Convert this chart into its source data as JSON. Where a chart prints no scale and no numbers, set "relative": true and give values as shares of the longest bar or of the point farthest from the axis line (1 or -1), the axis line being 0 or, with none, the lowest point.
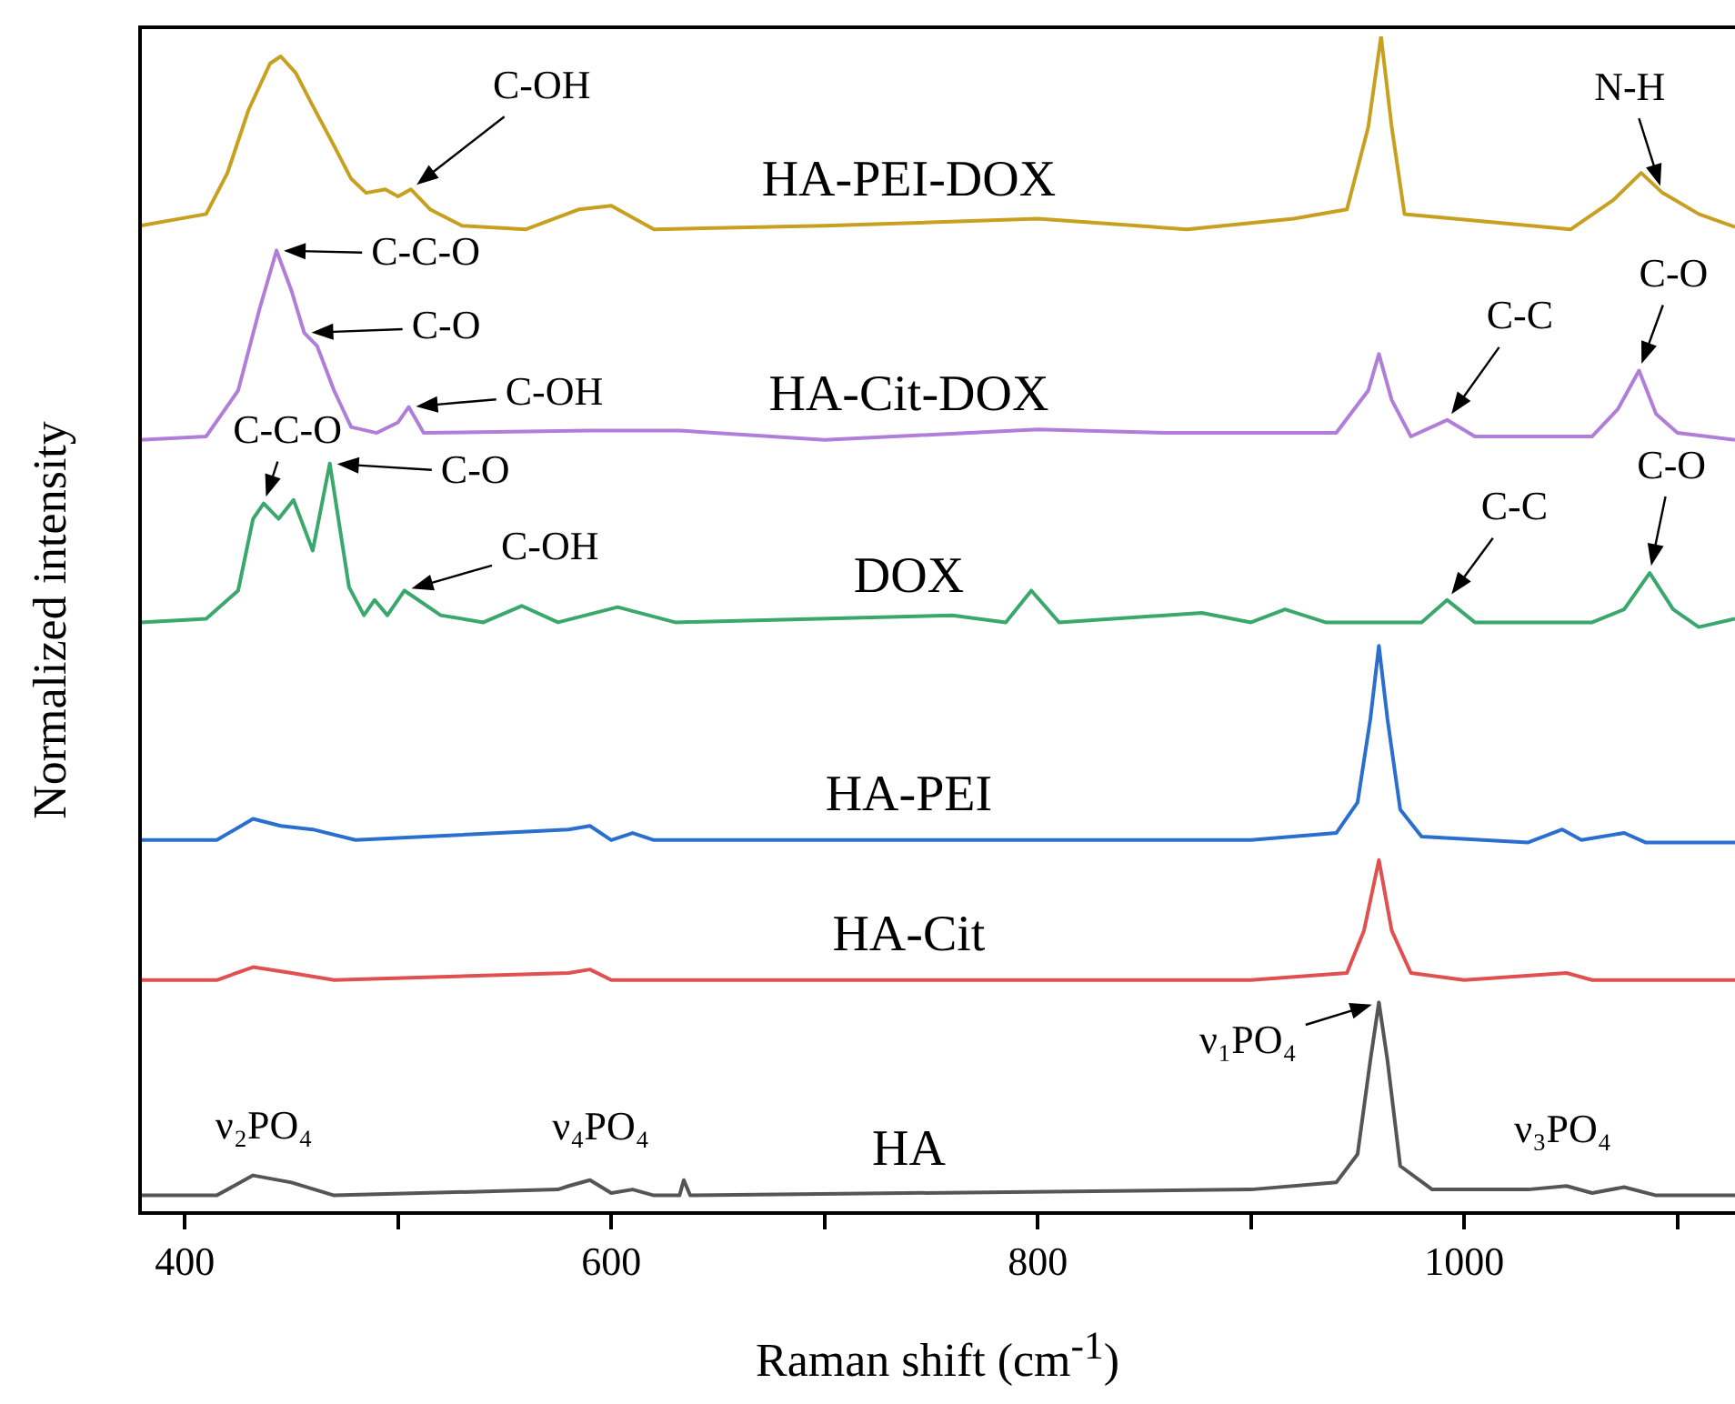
{
  "chart_data": {
    "type": "line",
    "relative": true,
    "xlabel": "Raman shift (cm$^{-1}$)",
    "ylabel": "Normalized intensity",
    "xlim": [
      379,
      1127
    ],
    "xticks": [
      400,
      {
        "value": 500,
        "label": null
      },
      600,
      {
        "value": 700,
        "label": null
      },
      800,
      {
        "value": 900,
        "label": null
      },
      1000,
      {
        "value": 1100,
        "label": null
      }
    ],
    "grid": false,
    "legend": false,
    "marker": "none",
    "line_style": "solid",
    "series": [
      {
        "name": "HA",
        "color": "#555555",
        "x": [
          379,
          415,
          432,
          450,
          470,
          575,
          580,
          590,
          600,
          610,
          620,
          632,
          634,
          637,
          900,
          940,
          950,
          956,
          960,
          964,
          970,
          985,
          1030,
          1048,
          1060,
          1075,
          1090,
          1127
        ],
        "values": [
          0.015,
          0.015,
          0.032,
          0.026,
          0.015,
          0.02,
          0.023,
          0.028,
          0.017,
          0.02,
          0.015,
          0.015,
          0.028,
          0.015,
          0.02,
          0.026,
          0.05,
          0.13,
          0.179,
          0.13,
          0.04,
          0.02,
          0.02,
          0.023,
          0.017,
          0.022,
          0.015,
          0.015
        ]
      },
      {
        "name": "HA-Cit",
        "color": "#e05050",
        "x": [
          379,
          415,
          432,
          450,
          470,
          580,
          590,
          600,
          900,
          945,
          953,
          960,
          966,
          975,
          1000,
          1048,
          1060,
          1127
        ],
        "values": [
          0.198,
          0.198,
          0.209,
          0.204,
          0.198,
          0.204,
          0.207,
          0.198,
          0.198,
          0.204,
          0.24,
          0.3,
          0.24,
          0.204,
          0.198,
          0.204,
          0.198,
          0.198
        ]
      },
      {
        "name": "HA-PEI",
        "color": "#2a6fcf",
        "x": [
          379,
          415,
          432,
          445,
          460,
          480,
          580,
          590,
          600,
          610,
          620,
          900,
          940,
          950,
          956,
          960,
          964,
          970,
          980,
          1030,
          1046,
          1055,
          1075,
          1085,
          1127
        ],
        "values": [
          0.317,
          0.317,
          0.335,
          0.329,
          0.326,
          0.317,
          0.326,
          0.329,
          0.317,
          0.323,
          0.317,
          0.317,
          0.323,
          0.349,
          0.42,
          0.482,
          0.42,
          0.343,
          0.32,
          0.315,
          0.326,
          0.317,
          0.323,
          0.315,
          0.315
        ]
      },
      {
        "name": "DOX",
        "color": "#3aa76d",
        "x": [
          379,
          410,
          425,
          432,
          437,
          444,
          451,
          460,
          468,
          477,
          484,
          489,
          495,
          503,
          520,
          540,
          558,
          575,
          603,
          630,
          760,
          785,
          797,
          810,
          877,
          900,
          916,
          935,
          980,
          992,
          1005,
          1060,
          1075,
          1087,
          1098,
          1110,
          1127
        ],
        "values": [
          0.502,
          0.505,
          0.529,
          0.59,
          0.603,
          0.59,
          0.606,
          0.563,
          0.637,
          0.532,
          0.508,
          0.521,
          0.508,
          0.529,
          0.508,
          0.502,
          0.516,
          0.502,
          0.515,
          0.502,
          0.508,
          0.502,
          0.529,
          0.502,
          0.51,
          0.502,
          0.513,
          0.502,
          0.502,
          0.521,
          0.502,
          0.502,
          0.513,
          0.544,
          0.513,
          0.498,
          0.505
        ]
      },
      {
        "name": "HA-Cit-DOX",
        "color": "#b07ed8",
        "x": [
          379,
          410,
          425,
          435,
          443,
          450,
          456,
          462,
          470,
          478,
          490,
          500,
          505,
          512,
          590,
          632,
          700,
          800,
          860,
          940,
          955,
          960,
          966,
          975,
          992,
          1005,
          1060,
          1072,
          1082,
          1090,
          1100,
          1127
        ],
        "values": [
          0.657,
          0.66,
          0.699,
          0.768,
          0.818,
          0.784,
          0.748,
          0.737,
          0.699,
          0.668,
          0.663,
          0.672,
          0.685,
          0.663,
          0.665,
          0.665,
          0.657,
          0.666,
          0.663,
          0.663,
          0.699,
          0.73,
          0.691,
          0.66,
          0.674,
          0.66,
          0.66,
          0.683,
          0.716,
          0.679,
          0.663,
          0.657
        ]
      },
      {
        "name": "HA-PEI-DOX",
        "color": "#c8a020",
        "x": [
          379,
          410,
          420,
          430,
          440,
          445,
          452,
          460,
          470,
          478,
          485,
          494,
          500,
          506,
          515,
          530,
          560,
          585,
          600,
          620,
          700,
          800,
          870,
          920,
          945,
          955,
          961,
          966,
          972,
          1050,
          1070,
          1083,
          1093,
          1096,
          1110,
          1127
        ],
        "values": [
          0.839,
          0.849,
          0.884,
          0.938,
          0.977,
          0.983,
          0.969,
          0.941,
          0.907,
          0.879,
          0.867,
          0.87,
          0.864,
          0.87,
          0.853,
          0.839,
          0.836,
          0.853,
          0.856,
          0.836,
          0.839,
          0.845,
          0.836,
          0.845,
          0.853,
          0.923,
          1.0,
          0.923,
          0.849,
          0.836,
          0.861,
          0.884,
          0.867,
          0.864,
          0.849,
          0.838
        ]
      }
    ],
    "annotations": [
      {
        "text": "C-OH",
        "x": 506,
        "y": 0.87
      },
      {
        "text": "N-H",
        "x": 1093,
        "y": 0.867
      },
      {
        "text": "C-C-O",
        "x": 443,
        "y": 0.818
      },
      {
        "text": "C-O",
        "x": 456,
        "y": 0.748
      },
      {
        "text": "C-OH",
        "x": 505,
        "y": 0.685
      },
      {
        "text": "C-C",
        "x": 992,
        "y": 0.674
      },
      {
        "text": "C-O",
        "x": 1082,
        "y": 0.716
      },
      {
        "text": "C-C-O",
        "x": 437,
        "y": 0.603
      },
      {
        "text": "C-O",
        "x": 468,
        "y": 0.637
      },
      {
        "text": "C-OH",
        "x": 503,
        "y": 0.529
      },
      {
        "text": "C-C",
        "x": 992,
        "y": 0.521
      },
      {
        "text": "C-O",
        "x": 1087,
        "y": 0.544
      },
      {
        "text": "ν₂PO₄",
        "x": 432,
        "y": 0.032
      },
      {
        "text": "ν₄PO₄",
        "x": 590,
        "y": 0.028
      },
      {
        "text": "ν₁PO₄",
        "x": 960,
        "y": 0.179
      },
      {
        "text": "ν₃PO₄",
        "x": 1048,
        "y": 0.023
      }
    ]
  }
}
